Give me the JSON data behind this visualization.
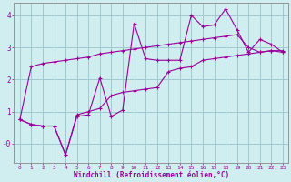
{
  "bg_color": "#d0eef0",
  "line_color": "#990099",
  "grid_color": "#a0c8d0",
  "xlabel": "Windchill (Refroidissement éolien,°C)",
  "xlabel_color": "#990099",
  "tick_color": "#990099",
  "ylim": [
    -0.6,
    4.4
  ],
  "xlim": [
    -0.5,
    23.5
  ],
  "yticks": [
    0,
    1,
    2,
    3,
    4
  ],
  "ytick_labels": [
    "-0",
    "1",
    "2",
    "3",
    "4"
  ],
  "xticks": [
    0,
    1,
    2,
    3,
    4,
    5,
    6,
    7,
    8,
    9,
    10,
    11,
    12,
    13,
    14,
    15,
    16,
    17,
    18,
    19,
    20,
    21,
    22,
    23
  ],
  "line1_x": [
    0,
    1,
    2,
    3,
    4,
    5,
    6,
    7,
    8,
    9,
    10,
    11,
    12,
    13,
    14,
    15,
    16,
    17,
    18,
    19,
    20,
    21,
    22,
    23
  ],
  "line1_y": [
    0.75,
    2.4,
    2.5,
    2.55,
    2.6,
    2.65,
    2.7,
    2.8,
    2.85,
    2.9,
    2.95,
    3.0,
    3.05,
    3.1,
    3.15,
    3.2,
    3.25,
    3.3,
    3.35,
    3.4,
    3.0,
    2.85,
    2.9,
    2.85
  ],
  "line2_x": [
    0,
    1,
    2,
    3,
    4,
    5,
    6,
    7,
    8,
    9,
    10,
    11,
    12,
    13,
    14,
    15,
    16,
    17,
    18,
    19,
    20,
    21,
    22,
    23
  ],
  "line2_y": [
    0.75,
    0.6,
    0.55,
    0.55,
    -0.35,
    0.85,
    0.9,
    2.05,
    0.85,
    1.05,
    3.75,
    2.65,
    2.6,
    2.6,
    2.6,
    4.0,
    3.65,
    3.7,
    4.2,
    3.55,
    2.85,
    3.25,
    3.1,
    2.85
  ],
  "line3_x": [
    0,
    1,
    2,
    3,
    4,
    5,
    6,
    7,
    8,
    9,
    10,
    11,
    12,
    13,
    14,
    15,
    16,
    17,
    18,
    19,
    20,
    21,
    22,
    23
  ],
  "line3_y": [
    0.75,
    0.6,
    0.55,
    0.55,
    -0.35,
    0.9,
    1.0,
    1.1,
    1.5,
    1.6,
    1.65,
    1.7,
    1.75,
    2.25,
    2.35,
    2.4,
    2.6,
    2.65,
    2.7,
    2.75,
    2.8,
    2.85,
    2.9,
    2.9
  ]
}
